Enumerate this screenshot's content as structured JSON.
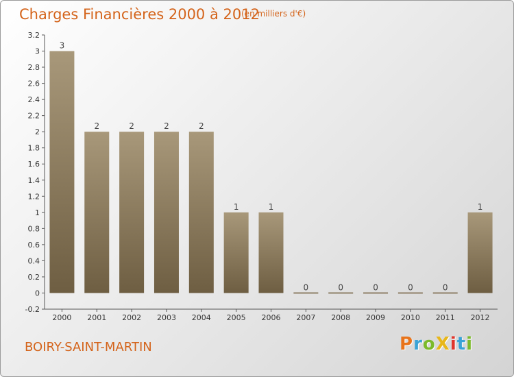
{
  "title": "Charges Financières 2000 à 2012",
  "unit": "(en milliers d'€)",
  "commune": "BOIRY-SAINT-MARTIN",
  "brand": {
    "text": "ProXiti",
    "colors": [
      "#e8731a",
      "#3aa3d6",
      "#7cba2b",
      "#e8b71a",
      "#e0352b",
      "#3aa3d6",
      "#7cba2b"
    ]
  },
  "colors": {
    "bar_top": "#a8987a",
    "bar_bottom": "#6e5e42",
    "title": "#d4641b"
  },
  "chart_data": {
    "type": "bar",
    "categories": [
      "2000",
      "2001",
      "2002",
      "2003",
      "2004",
      "2005",
      "2006",
      "2007",
      "2008",
      "2009",
      "2010",
      "2011",
      "2012"
    ],
    "values": [
      3,
      2,
      2,
      2,
      2,
      1,
      1,
      0,
      0,
      0,
      0,
      0,
      1
    ],
    "data_labels": [
      "3",
      "2",
      "2",
      "2",
      "2",
      "1",
      "1",
      "0",
      "0",
      "0",
      "0",
      "0",
      "1"
    ],
    "yticks": [
      "-0.2",
      "0",
      "0.2",
      "0.4",
      "0.6",
      "0.8",
      "1",
      "1.2",
      "1.4",
      "1.6",
      "1.8",
      "2",
      "2.2",
      "2.4",
      "2.6",
      "2.8",
      "3",
      "3.2"
    ],
    "ylim": [
      -0.2,
      3.2
    ],
    "grid": false,
    "legend": false
  }
}
